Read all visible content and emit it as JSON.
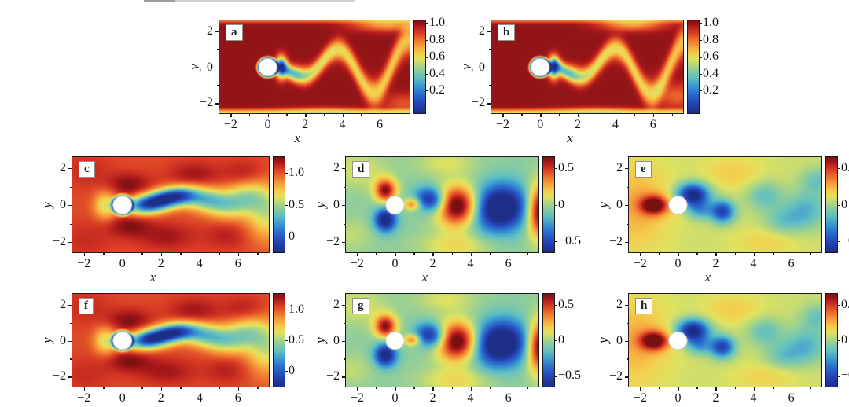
{
  "chart_data": {
    "type": "heatmap",
    "domain": {
      "xmin": -2.6,
      "xmax": 7.6,
      "ymin": -2.55,
      "ymax": 2.6,
      "cylinder": {
        "x": 0,
        "y": 0,
        "r": 0.5
      }
    },
    "axes": {
      "x_label": "x",
      "y_label": "y",
      "x_ticks": [
        {
          "v": -2,
          "label": "−2"
        },
        {
          "v": 0,
          "label": "0"
        },
        {
          "v": 2,
          "label": "2"
        },
        {
          "v": 4,
          "label": "4"
        },
        {
          "v": 6,
          "label": "6"
        }
      ],
      "x_minor": [
        -1,
        1,
        3,
        5,
        7
      ],
      "y_ticks": [
        {
          "v": 2,
          "label": "2"
        },
        {
          "v": 0,
          "label": "0"
        },
        {
          "v": -2,
          "label": "−2"
        }
      ],
      "y_minor": [
        1,
        -1
      ]
    },
    "colormap": [
      {
        "t": 0.0,
        "c": "#1d2e86"
      },
      {
        "t": 0.1,
        "c": "#2443b2"
      },
      {
        "t": 0.2,
        "c": "#2a68cd"
      },
      {
        "t": 0.3,
        "c": "#3d9bd0"
      },
      {
        "t": 0.38,
        "c": "#62c0c2"
      },
      {
        "t": 0.46,
        "c": "#8ccc9e"
      },
      {
        "t": 0.52,
        "c": "#b4d77f"
      },
      {
        "t": 0.58,
        "c": "#e0e260"
      },
      {
        "t": 0.64,
        "c": "#f3d04e"
      },
      {
        "t": 0.71,
        "c": "#f7a63f"
      },
      {
        "t": 0.79,
        "c": "#ee732f"
      },
      {
        "t": 0.87,
        "c": "#d83b24"
      },
      {
        "t": 0.94,
        "c": "#ad1a1c"
      },
      {
        "t": 1.0,
        "c": "#791012"
      }
    ],
    "colorbars": {
      "speed": {
        "vmin": -0.07,
        "vmax": 1.03,
        "ticks": [
          {
            "v": 1.0,
            "label": "1.0"
          },
          {
            "v": 0.8,
            "label": "0.8"
          },
          {
            "v": 0.6,
            "label": "0.6"
          },
          {
            "v": 0.4,
            "label": "0.4"
          },
          {
            "v": 0.2,
            "label": "0.2"
          }
        ]
      },
      "u": {
        "vmin": -0.25,
        "vmax": 1.25,
        "ticks": [
          {
            "v": 1.0,
            "label": "1.0"
          },
          {
            "v": 0.5,
            "label": "0.5"
          },
          {
            "v": 0,
            "label": "0"
          }
        ]
      },
      "vp": {
        "vmin": -0.65,
        "vmax": 0.65,
        "ticks": [
          {
            "v": 0.5,
            "label": "0.5"
          },
          {
            "v": 0,
            "label": "0"
          },
          {
            "v": -0.5,
            "label": "−0.5"
          }
        ]
      }
    },
    "panels": [
      {
        "id": "a",
        "label": "a",
        "field": "speed_a",
        "colorbar": "speed"
      },
      {
        "id": "b",
        "label": "b",
        "field": "speed_b",
        "colorbar": "speed"
      },
      {
        "id": "c",
        "label": "c",
        "field": "u_mid",
        "colorbar": "u"
      },
      {
        "id": "d",
        "label": "d",
        "field": "v_mid",
        "colorbar": "vp"
      },
      {
        "id": "e",
        "label": "e",
        "field": "p_mid",
        "colorbar": "vp"
      },
      {
        "id": "f",
        "label": "f",
        "field": "u_mid",
        "colorbar": "u"
      },
      {
        "id": "g",
        "label": "g",
        "field": "v_mid",
        "colorbar": "vp"
      },
      {
        "id": "h",
        "label": "h",
        "field": "p_mid",
        "colorbar": "vp"
      }
    ],
    "fields": {
      "speed_a": {
        "background": 1.0,
        "ring": {
          "amp": -0.85,
          "w": 0.07
        },
        "walls": [
          {
            "y": -2.52,
            "amp": -0.38,
            "sy": 0.13
          },
          {
            "y": 2.62,
            "amp": -0.22,
            "sy": 0.11
          }
        ],
        "path": {
          "x0": 0.8,
          "x1": 7.7,
          "freq": 1.6,
          "phase": -4.3,
          "a0": 0.3,
          "a1": 0.23,
          "amax": 1.5,
          "w0": 0.26,
          "w1": 0.045,
          "amp": -0.5,
          "decay": 0.07
        },
        "blobs": [
          {
            "x": 0.72,
            "y": 0,
            "sx": 0.2,
            "sy": 0.4,
            "amp": -0.92
          },
          {
            "x": 1.5,
            "y": -0.3,
            "sx": 0.45,
            "sy": 0.3,
            "amp": -0.2
          },
          {
            "x": 3.0,
            "y": -2.42,
            "sx": 1.5,
            "sy": 0.18,
            "amp": -0.12
          },
          {
            "x": 6.4,
            "y": 2.35,
            "sx": 1.3,
            "sy": 0.25,
            "amp": -0.28
          },
          {
            "x": 7.3,
            "y": -2.0,
            "sx": 0.8,
            "sy": 0.4,
            "amp": -0.15
          }
        ]
      },
      "speed_b": {
        "background": 1.0,
        "ring": {
          "amp": -0.85,
          "w": 0.07
        },
        "walls": [
          {
            "y": -2.52,
            "amp": -0.38,
            "sy": 0.13
          },
          {
            "y": 2.62,
            "amp": -0.22,
            "sy": 0.11
          }
        ],
        "path": {
          "x0": 0.8,
          "x1": 7.7,
          "freq": 1.6,
          "phase": -4.7,
          "a0": 0.3,
          "a1": 0.23,
          "amax": 1.5,
          "w0": 0.26,
          "w1": 0.045,
          "amp": -0.5,
          "decay": 0.07
        },
        "blobs": [
          {
            "x": 0.72,
            "y": 0,
            "sx": 0.2,
            "sy": 0.4,
            "amp": -0.92
          },
          {
            "x": 1.6,
            "y": -0.25,
            "sx": 0.45,
            "sy": 0.3,
            "amp": -0.2
          },
          {
            "x": 3.0,
            "y": -2.42,
            "sx": 1.5,
            "sy": 0.18,
            "amp": -0.12
          },
          {
            "x": 4.9,
            "y": 2.38,
            "sx": 1.2,
            "sy": 0.25,
            "amp": -0.28
          },
          {
            "x": 7.3,
            "y": -1.6,
            "sx": 0.8,
            "sy": 0.5,
            "amp": -0.18
          }
        ]
      },
      "u_mid": {
        "background": 1.02,
        "ring": {
          "amp": -0.7,
          "w": 0.08
        },
        "blobs": [
          {
            "x": -0.85,
            "y": 0,
            "sx": 0.42,
            "sy": 0.52,
            "amp": -0.42
          },
          {
            "x": 0.35,
            "y": 1.08,
            "sx": 0.8,
            "sy": 0.46,
            "amp": 0.22
          },
          {
            "x": 0.35,
            "y": -1.08,
            "sx": 0.8,
            "sy": 0.46,
            "amp": 0.22
          },
          {
            "x": 1.5,
            "y": 0.1,
            "sx": 0.85,
            "sy": 0.36,
            "amp": -1.25,
            "theta": 10
          },
          {
            "x": 2.8,
            "y": 0.5,
            "sx": 0.7,
            "sy": 0.34,
            "amp": -0.85,
            "theta": 6
          },
          {
            "x": 4.1,
            "y": 0.35,
            "sx": 0.8,
            "sy": 0.42,
            "amp": -0.55,
            "theta": -6
          },
          {
            "x": 5.3,
            "y": 0,
            "sx": 0.8,
            "sy": 0.5,
            "amp": -0.45,
            "theta": -8
          },
          {
            "x": 6.4,
            "y": 0.45,
            "sx": 0.7,
            "sy": 0.55,
            "amp": -0.42
          },
          {
            "x": 7.5,
            "y": -0.35,
            "sx": 0.7,
            "sy": 1.0,
            "amp": -0.45
          },
          {
            "x": 3.7,
            "y": 1.65,
            "sx": 0.9,
            "sy": 0.5,
            "amp": 0.16
          },
          {
            "x": 2.3,
            "y": -1.7,
            "sx": 1.0,
            "sy": 0.5,
            "amp": 0.16
          },
          {
            "x": 5.4,
            "y": -1.65,
            "sx": 0.8,
            "sy": 0.5,
            "amp": 0.12
          },
          {
            "x": 6.3,
            "y": 1.75,
            "sx": 0.8,
            "sy": 0.5,
            "amp": 0.12
          },
          {
            "x": -1.9,
            "y": 1.9,
            "sx": 0.9,
            "sy": 0.7,
            "amp": 0.08
          },
          {
            "x": -1.9,
            "y": -1.9,
            "sx": 0.9,
            "sy": 0.7,
            "amp": 0.08
          }
        ]
      },
      "v_mid": {
        "background": -0.05,
        "blobs": [
          {
            "x": -0.5,
            "y": 0.8,
            "sx": 0.4,
            "sy": 0.44,
            "amp": 0.68
          },
          {
            "x": -0.5,
            "y": -0.8,
            "sx": 0.4,
            "sy": 0.44,
            "amp": -0.68
          },
          {
            "x": 0.92,
            "y": 0.05,
            "sx": 0.3,
            "sy": 0.22,
            "amp": 0.42
          },
          {
            "x": 1.9,
            "y": 0.3,
            "sx": 0.55,
            "sy": 0.45,
            "amp": -0.62,
            "theta": -15
          },
          {
            "x": 3.35,
            "y": -0.05,
            "sx": 0.8,
            "sy": 0.75,
            "amp": 0.85
          },
          {
            "x": 5.55,
            "y": -0.15,
            "sx": 1.05,
            "sy": 0.85,
            "amp": -0.85,
            "theta": 8
          },
          {
            "x": 7.7,
            "y": -0.3,
            "sx": 0.5,
            "sy": 1.0,
            "amp": 0.8
          },
          {
            "x": 3.2,
            "y": -2.2,
            "sx": 1.3,
            "sy": 0.5,
            "amp": 0.2
          },
          {
            "x": 2.7,
            "y": 2.3,
            "sx": 1.1,
            "sy": 0.5,
            "amp": 0.15
          },
          {
            "x": -1.9,
            "y": 1.9,
            "sx": 1.0,
            "sy": 0.7,
            "amp": 0.15
          },
          {
            "x": -2.3,
            "y": -1.6,
            "sx": 0.8,
            "sy": 0.6,
            "amp": 0.1
          }
        ]
      },
      "p_mid": {
        "background": 0.07,
        "blobs": [
          {
            "x": -1.25,
            "y": 0,
            "sx": 0.52,
            "sy": 0.36,
            "amp": 0.62
          },
          {
            "x": -1.9,
            "y": 0,
            "sx": 1.3,
            "sy": 1.5,
            "amp": 0.12
          },
          {
            "x": 0.8,
            "y": 0.55,
            "sx": 0.6,
            "sy": 0.44,
            "amp": -0.78
          },
          {
            "x": 1.15,
            "y": -0.3,
            "sx": 0.45,
            "sy": 0.35,
            "amp": -0.28
          },
          {
            "x": 2.35,
            "y": -0.35,
            "sx": 0.45,
            "sy": 0.42,
            "amp": -0.6
          },
          {
            "x": 4.6,
            "y": 0.5,
            "sx": 0.65,
            "sy": 0.55,
            "amp": -0.22
          },
          {
            "x": 5.6,
            "y": -0.85,
            "sx": 0.7,
            "sy": 0.5,
            "amp": -0.18
          },
          {
            "x": 6.8,
            "y": -0.25,
            "sx": 0.8,
            "sy": 0.7,
            "amp": -0.26
          },
          {
            "x": 7.4,
            "y": 1.3,
            "sx": 0.6,
            "sy": 0.5,
            "amp": -0.2
          },
          {
            "x": 2.9,
            "y": 1.75,
            "sx": 1.1,
            "sy": 0.6,
            "amp": 0.12
          },
          {
            "x": 4.6,
            "y": -2.0,
            "sx": 1.2,
            "sy": 0.5,
            "amp": 0.1
          },
          {
            "x": -2.4,
            "y": 0,
            "sx": 1.0,
            "sy": 2.2,
            "amp": 0.08
          }
        ]
      }
    },
    "artifacts": {
      "dark": "#9d9d9d",
      "light": "#cfcfcf"
    }
  }
}
